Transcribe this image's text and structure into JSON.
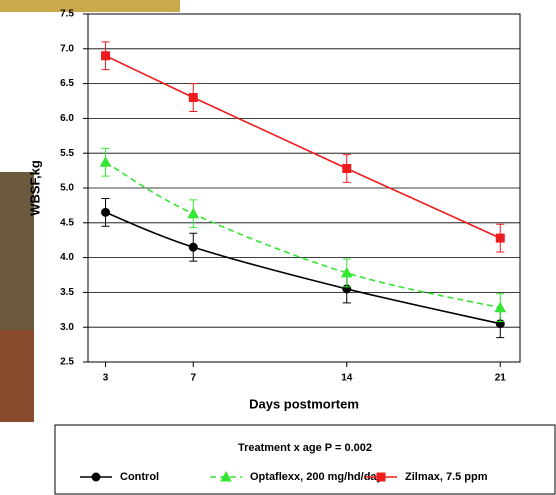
{
  "chart_data": {
    "type": "line",
    "y_label": "WBSF,kg",
    "x_label": "Days postmortem",
    "legend_title": "Treatment x age P = 0.002",
    "x": [
      3,
      7,
      14,
      21
    ],
    "xlim": [
      2.2,
      21.9
    ],
    "xticks": [
      3,
      7,
      14,
      21
    ],
    "ylim": [
      2.5,
      7.5
    ],
    "yticks": [
      2.5,
      {
        "value": 3,
        "label": "3.0"
      },
      3.5,
      {
        "value": 4,
        "label": "4.0"
      },
      4.5,
      {
        "value": 5,
        "label": "5.0"
      },
      5.5,
      {
        "value": 6,
        "label": "6.0"
      },
      6.5,
      {
        "value": 7,
        "label": "7.0"
      },
      7.5
    ],
    "grid": true,
    "legend": "bottom",
    "series": [
      {
        "name": "Control",
        "color": "#000000",
        "marker": "circle",
        "smooth": true,
        "dashed": false,
        "values": [
          4.65,
          4.15,
          3.55,
          3.05
        ],
        "errors": [
          0.2,
          0.2,
          0.2,
          0.2
        ]
      },
      {
        "name": "Optaflexx, 200 mg/hd/day",
        "color": "#33e633",
        "marker": "triangle",
        "smooth": true,
        "dashed": true,
        "values": [
          5.37,
          4.63,
          3.78,
          3.28
        ],
        "errors": [
          0.2,
          0.2,
          0.2,
          0.2
        ]
      },
      {
        "name": "Zilmax, 7.5 ppm",
        "color": "#ee1c1c",
        "marker": "square",
        "smooth": false,
        "dashed": false,
        "values": [
          6.9,
          6.3,
          5.28,
          4.28
        ],
        "errors": [
          0.2,
          0.2,
          0.2,
          0.2
        ]
      }
    ]
  }
}
